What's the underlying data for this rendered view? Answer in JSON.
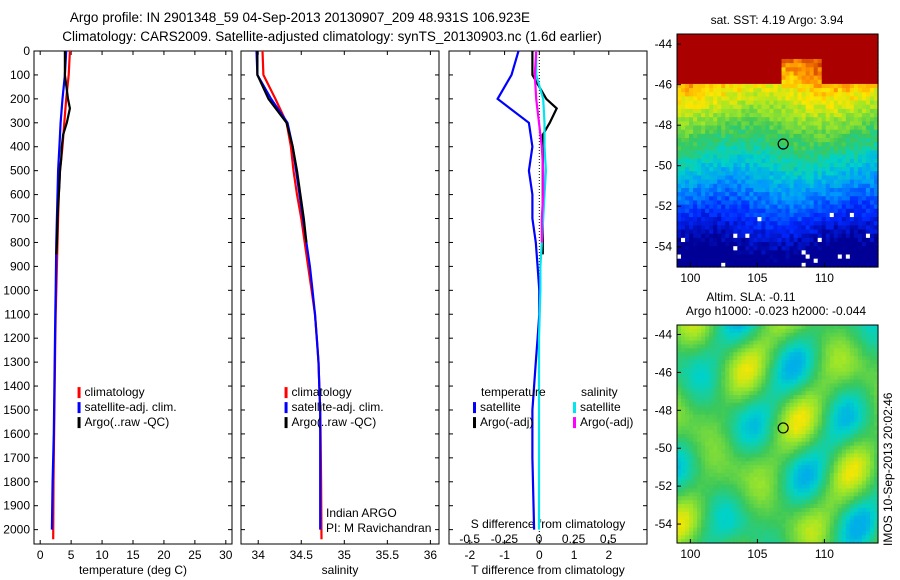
{
  "title": {
    "line1": "Argo profile: IN 2901348_59 04-Sep-2013 20130907_209 48.931S 106.923E",
    "line2": "Climatology: CARS2009. Satellite-adjusted climatology: synTS_20130903.nc (1.6d earlier)"
  },
  "colors": {
    "climatology": "#ff0000",
    "satellite": "#0000ff",
    "argo": "#000000",
    "satellite_salinity": "#00e5ee",
    "argo_salinity": "#ff00ff"
  },
  "labels": {
    "pi_line1": "Indian ARGO",
    "pi_line2": "PI: M Ravichandran",
    "map1_title": "sat. SST: 4.19 Argo: 3.94",
    "map2_title1": "Altim. SLA: -0.11",
    "map2_title2": "Argo h1000: -0.023 h2000: -0.044",
    "side_stamp": "IMOS 10-Sep-2013 20:02:46"
  },
  "chart_data": [
    {
      "type": "line",
      "xlabel": "temperature (deg C)",
      "ylabel": "",
      "xlim": [
        -1,
        31
      ],
      "ylim": [
        2060,
        0
      ],
      "xticks": [
        0,
        5,
        10,
        15,
        20,
        25,
        30
      ],
      "yticks": [
        0,
        100,
        200,
        300,
        400,
        500,
        600,
        700,
        800,
        900,
        1000,
        1100,
        1200,
        1300,
        1400,
        1500,
        1600,
        1700,
        1800,
        1900,
        2000
      ],
      "legend": [
        "climatology",
        "satellite-adj. clim.",
        "Argo(..raw -QC)"
      ],
      "series": [
        {
          "name": "climatology",
          "color": "#ff0000",
          "x": [
            4.8,
            4.6,
            4.2,
            3.9,
            3.6,
            3.2,
            3.0,
            2.9,
            2.8,
            2.7,
            2.6,
            2.5,
            2.45,
            2.4,
            2.35,
            2.3,
            2.25,
            2.2,
            2.15,
            2.1
          ],
          "y": [
            0,
            100,
            200,
            300,
            400,
            500,
            600,
            700,
            800,
            900,
            1000,
            1100,
            1200,
            1300,
            1400,
            1500,
            1600,
            1700,
            1800,
            2040
          ]
        },
        {
          "name": "satellite-adj. clim.",
          "color": "#0000ff",
          "x": [
            4.2,
            4.0,
            3.6,
            3.3,
            3.1,
            2.9,
            2.8,
            2.7,
            2.6,
            2.55,
            2.5,
            2.45,
            2.4,
            2.35,
            2.3,
            2.25,
            2.2,
            2.1,
            2.0,
            1.9
          ],
          "y": [
            0,
            100,
            200,
            300,
            400,
            500,
            600,
            700,
            800,
            900,
            1000,
            1100,
            1200,
            1300,
            1400,
            1500,
            1600,
            1700,
            1800,
            2000
          ]
        },
        {
          "name": "Argo(..raw -QC)",
          "color": "#000000",
          "x": [
            4.0,
            4.0,
            4.5,
            4.8,
            4.3,
            3.7,
            3.5,
            3.4,
            3.2,
            3.1,
            3.0,
            2.9,
            2.8,
            2.75,
            2.7,
            2.6
          ],
          "y": [
            0,
            100,
            200,
            240,
            300,
            350,
            400,
            450,
            500,
            560,
            600,
            650,
            700,
            750,
            800,
            850
          ]
        }
      ]
    },
    {
      "type": "line",
      "xlabel": "salinity",
      "ylabel": "",
      "xlim": [
        33.8,
        36.1
      ],
      "ylim": [
        2060,
        0
      ],
      "xticks": [
        34,
        34.5,
        35,
        35.5,
        36
      ],
      "legend": [
        "climatology",
        "satellite-adj. clim.",
        "Argo(..raw -QC)"
      ],
      "series": [
        {
          "name": "climatology",
          "color": "#ff0000",
          "x": [
            34.05,
            34.06,
            34.2,
            34.33,
            34.38,
            34.41,
            34.45,
            34.5,
            34.54,
            34.58,
            34.62,
            34.66,
            34.68,
            34.7,
            34.71,
            34.72,
            34.725,
            34.73,
            34.735
          ],
          "y": [
            0,
            100,
            200,
            300,
            400,
            500,
            600,
            700,
            800,
            900,
            1000,
            1100,
            1200,
            1300,
            1400,
            1500,
            1600,
            1800,
            2040
          ]
        },
        {
          "name": "satellite-adj. clim.",
          "color": "#0000ff",
          "x": [
            33.98,
            33.99,
            34.15,
            34.34,
            34.4,
            34.44,
            34.48,
            34.52,
            34.56,
            34.6,
            34.63,
            34.66,
            34.68,
            34.7,
            34.71,
            34.72,
            34.72,
            34.72,
            34.72
          ],
          "y": [
            0,
            100,
            200,
            300,
            400,
            500,
            600,
            700,
            800,
            900,
            1000,
            1100,
            1200,
            1300,
            1400,
            1500,
            1600,
            1800,
            2000
          ]
        },
        {
          "name": "Argo(..raw -QC)",
          "color": "#000000",
          "x": [
            33.99,
            33.99,
            34.12,
            34.33,
            34.4,
            34.45,
            34.49,
            34.53,
            34.56
          ],
          "y": [
            0,
            100,
            200,
            300,
            400,
            500,
            600,
            700,
            800
          ]
        }
      ]
    },
    {
      "type": "line",
      "xlabel": "T difference from climatology",
      "xlabel_top": "S difference from climatology",
      "ylabel": "",
      "xlim": [
        -2.6,
        3.1
      ],
      "ylim": [
        2060,
        0
      ],
      "xticks": [
        -2,
        -1,
        0,
        1,
        2
      ],
      "xticks_top": [
        -0.5,
        -0.25,
        0,
        0.25,
        0.5
      ],
      "legend_groups": [
        {
          "title": "temperature",
          "entries": [
            "satellite",
            "Argo(-adj)"
          ]
        },
        {
          "title": "salinity",
          "entries": [
            "satellite",
            "Argo(-adj)"
          ]
        }
      ],
      "series": [
        {
          "name": "satellite",
          "group": "temperature",
          "color": "#0000ff",
          "x": [
            -0.6,
            -0.8,
            -1.2,
            -0.3,
            -0.2,
            -0.3,
            -0.2,
            -0.2,
            -0.1,
            -0.05,
            0,
            0,
            -0.05,
            -0.1,
            -0.15,
            -0.2,
            -0.2,
            -0.15
          ],
          "y": [
            0,
            100,
            200,
            300,
            400,
            500,
            600,
            700,
            800,
            900,
            1000,
            1100,
            1200,
            1300,
            1400,
            1500,
            1700,
            2000
          ]
        },
        {
          "name": "Argo(-adj)",
          "group": "temperature",
          "color": "#000000",
          "x": [
            -0.2,
            -0.2,
            0.2,
            0.5,
            0.3,
            0.1,
            0.1,
            0.1,
            0.1,
            0.1,
            0.1,
            0.1,
            0.1,
            0.1,
            0.1,
            0.1
          ],
          "y": [
            0,
            100,
            200,
            240,
            300,
            350,
            400,
            450,
            500,
            560,
            600,
            650,
            700,
            750,
            800,
            850
          ]
        },
        {
          "name": "satellite",
          "group": "salinity",
          "color": "#00e5ee",
          "x": [
            -0.02,
            -0.02,
            0.03,
            0.04,
            0.04,
            0.05,
            0.04,
            0.03,
            0.02,
            0.01,
            0.01,
            0.0,
            0.0,
            0.0,
            0.0
          ],
          "y": [
            0,
            100,
            200,
            300,
            400,
            500,
            600,
            700,
            800,
            900,
            1000,
            1200,
            1400,
            1700,
            2000
          ]
        },
        {
          "name": "Argo(-adj)",
          "group": "salinity",
          "color": "#ff00ff",
          "x": [
            -0.02,
            -0.03,
            -0.02,
            0.0,
            0.02,
            0.03,
            0.03,
            0.02,
            0.02
          ],
          "y": [
            0,
            100,
            200,
            300,
            400,
            500,
            600,
            700,
            800
          ]
        }
      ]
    },
    {
      "type": "heatmap",
      "title": "sat. SST: 4.19 Argo: 3.94",
      "xlim": [
        99,
        114
      ],
      "ylim": [
        -55,
        -43.5
      ],
      "xticks": [
        100,
        105,
        110
      ],
      "yticks": [
        -44,
        -46,
        -48,
        -50,
        -52,
        -54
      ],
      "argo_position": {
        "lon": 106.923,
        "lat": -48.931
      }
    },
    {
      "type": "heatmap",
      "title": "Altim. SLA: -0.11 | Argo h1000: -0.023 h2000: -0.044",
      "xlim": [
        99,
        114
      ],
      "ylim": [
        -55,
        -43.5
      ],
      "xticks": [
        100,
        105,
        110
      ],
      "yticks": [
        -44,
        -46,
        -48,
        -50,
        -52,
        -54
      ],
      "argo_position": {
        "lon": 106.923,
        "lat": -48.931
      }
    }
  ]
}
